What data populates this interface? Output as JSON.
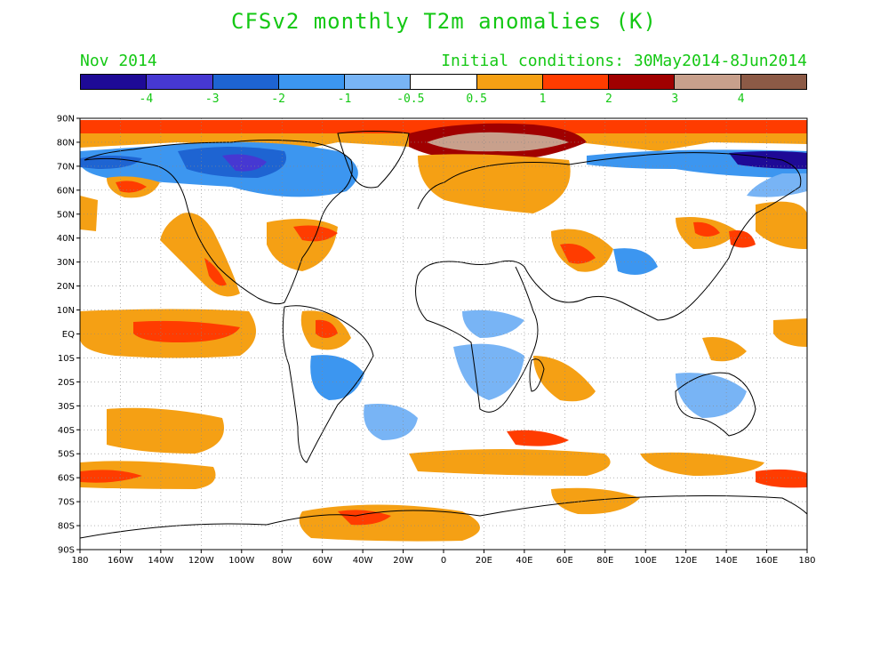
{
  "title": "CFSv2 monthly T2m anomalies (K)",
  "valid_month": "Nov 2014",
  "initial_conditions": "Initial conditions: 30May2014-8Jun2014",
  "colorbar": {
    "colors": [
      "#1e0a96",
      "#4638d2",
      "#1e64d2",
      "#3c96f0",
      "#78b4f5",
      "#ffffff",
      "#f5a014",
      "#ff3c00",
      "#a00000",
      "#c8a08c",
      "#8c5a46"
    ],
    "labels": [
      "-4",
      "-3",
      "-2",
      "-1",
      "-0.5",
      "0.5",
      "1",
      "2",
      "3",
      "4"
    ]
  },
  "axes": {
    "lon_labels": [
      "180",
      "160W",
      "140W",
      "120W",
      "100W",
      "80W",
      "60W",
      "40W",
      "20W",
      "0",
      "20E",
      "40E",
      "60E",
      "80E",
      "100E",
      "120E",
      "140E",
      "160E",
      "180"
    ],
    "lat_labels": [
      "90N",
      "80N",
      "70N",
      "60N",
      "50N",
      "40N",
      "30N",
      "20N",
      "10N",
      "EQ",
      "10S",
      "20S",
      "30S",
      "40S",
      "50S",
      "60S",
      "70S",
      "80S",
      "90S"
    ]
  }
}
